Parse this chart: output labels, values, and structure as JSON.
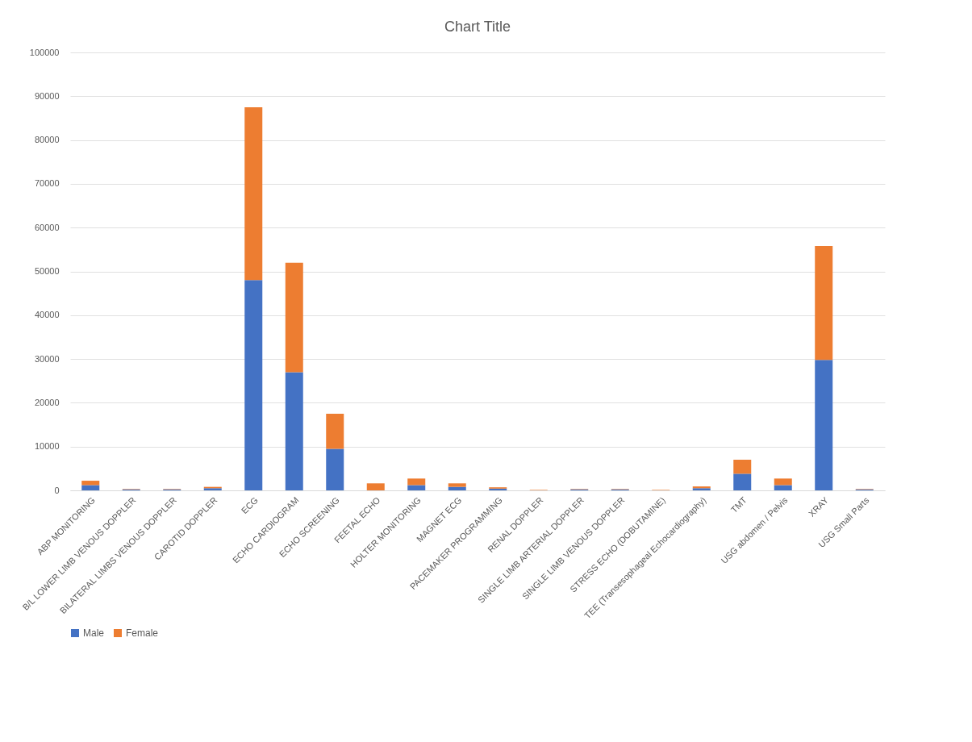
{
  "chart_data": {
    "type": "bar",
    "title": "Chart Title",
    "stacked": true,
    "categories": [
      "ABP MONITORING",
      "B/L LOWER LIMB VENOUS DOPPLER",
      "BILATERAL LIMBS VENOUS DOPPLER",
      "CAROTID DOPPLER",
      "ECG",
      "ECHO CARDIOGRAM",
      "ECHO SCREENING",
      "FEETAL ECHO",
      "HOLTER MONITORING",
      "MAGNET ECG",
      "PACEMAKER PROGRAMMING",
      "RENAL DOPPLER",
      "SINGLE LIMB ARTERIAL DOPPLER",
      "SINGLE LIMB VENOUS DOPPLER",
      "STRESS ECHO (DOBUTAMINE)",
      "TEE (Transesophageal Echocardiography)",
      "TMT",
      "USG abdomen / Pelvis",
      "XRAY",
      "USG Small Parts"
    ],
    "series": [
      {
        "name": "Male",
        "color": "#4472c4",
        "values": [
          1200,
          200,
          200,
          500,
          48000,
          27000,
          9500,
          null,
          1200,
          800,
          400,
          null,
          200,
          200,
          null,
          500,
          3800,
          1200,
          29800,
          200
        ]
      },
      {
        "name": "Female",
        "color": "#ed7d31",
        "values": [
          1000,
          100,
          100,
          300,
          39500,
          25000,
          8000,
          1600,
          1500,
          800,
          300,
          100,
          100,
          100,
          100,
          400,
          3200,
          1500,
          26000,
          100
        ]
      }
    ],
    "ylim": [
      0,
      100000
    ],
    "yticks": [
      0,
      10000,
      20000,
      30000,
      40000,
      50000,
      60000,
      70000,
      80000,
      90000,
      100000
    ],
    "grid": "y",
    "legend": "bottom"
  }
}
